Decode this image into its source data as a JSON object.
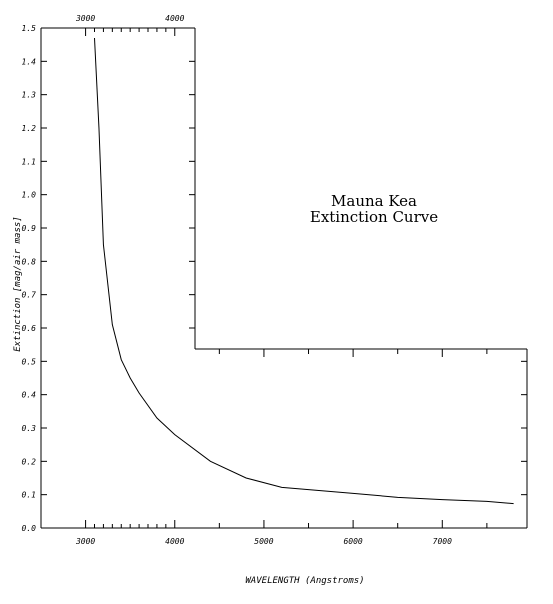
{
  "chart_data": {
    "type": "line",
    "title_lines": [
      "Mauna Kea",
      "Extinction Curve"
    ],
    "xlabel": "WAVELENGTH (Angstroms)",
    "ylabel": "Extinction [mag/air mass]",
    "xlim": [
      2500,
      7950
    ],
    "ylim": [
      0.0,
      1.5
    ],
    "x_ticks_bottom": [
      "3000",
      "4000",
      "5000",
      "6000",
      "7000"
    ],
    "x_ticks_top": [
      "3000",
      "4000"
    ],
    "y_ticks": [
      "0.0",
      "0.1",
      "0.2",
      "0.3",
      "0.4",
      "0.5",
      "0.6",
      "0.7",
      "0.8",
      "0.9",
      "1.0",
      "1.1",
      "1.2",
      "1.3",
      "1.4",
      "1.5"
    ],
    "grid": false,
    "legend": "none",
    "series": [
      {
        "x": [
          3100,
          3150,
          3200,
          3300,
          3400,
          3500,
          3600,
          3800,
          4000,
          4400,
          4800,
          5200,
          5600,
          6000,
          6500,
          7000,
          7500,
          7800
        ],
        "y": [
          1.47,
          1.2,
          0.85,
          0.61,
          0.505,
          0.45,
          0.405,
          0.33,
          0.28,
          0.2,
          0.15,
          0.122,
          0.113,
          0.104,
          0.092,
          0.085,
          0.08,
          0.073
        ]
      }
    ]
  }
}
